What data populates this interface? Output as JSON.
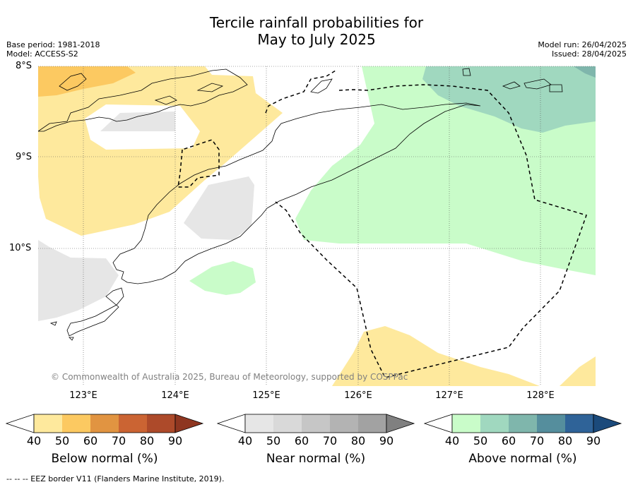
{
  "title_line1": "Tercile rainfall probabilities for",
  "title_line2": "May to July 2025",
  "meta_left": [
    "Base period: 1981-2018",
    "Model: ACCESS-S2"
  ],
  "meta_right": [
    "Model run: 26/04/2025",
    "Issued: 28/04/2025"
  ],
  "lat_labels": [
    "8°S",
    "9°S",
    "10°S"
  ],
  "lon_labels": [
    "123°E",
    "124°E",
    "125°E",
    "126°E",
    "127°E",
    "128°E"
  ],
  "copyright": "© Commonwealth of Australia 2025, Bureau of Meteorology, supported by COSPPac",
  "colorbars": [
    {
      "label": "Below normal (%)",
      "ticks": [
        "40",
        "50",
        "60",
        "70",
        "80",
        "90"
      ],
      "colors": [
        "#ffffff",
        "#fee99d",
        "#fcc961",
        "#e19441",
        "#cb6433",
        "#ad4a2a",
        "#8e3620"
      ]
    },
    {
      "label": "Near normal (%)",
      "ticks": [
        "40",
        "50",
        "60",
        "70",
        "80",
        "90"
      ],
      "colors": [
        "#ffffff",
        "#e6e6e6",
        "#d9d9d9",
        "#c6c6c6",
        "#b3b3b3",
        "#a2a2a2",
        "#808080"
      ]
    },
    {
      "label": "Above normal (%)",
      "ticks": [
        "40",
        "50",
        "60",
        "70",
        "80",
        "90"
      ],
      "colors": [
        "#ffffff",
        "#c9fcc9",
        "#a0d8bf",
        "#7fb6ac",
        "#558e9d",
        "#2f6398",
        "#1b4a7b"
      ]
    }
  ],
  "footer": "--  --  -- EEZ border V11 (Flanders Marine Institute, 2019)."
}
